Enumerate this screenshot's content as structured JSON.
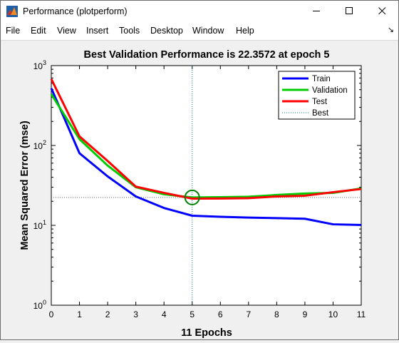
{
  "window": {
    "title": "Performance (plotperform)"
  },
  "menu": [
    "File",
    "Edit",
    "View",
    "Insert",
    "Tools",
    "Desktop",
    "Window",
    "Help"
  ],
  "colors": {
    "train": "#0000ff",
    "validation": "#00cc00",
    "test": "#ff0000",
    "best_marker": "#008000",
    "best_line": "#008080"
  },
  "chart_data": {
    "type": "line",
    "title": "Best Validation Performance is 22.3572 at epoch 5",
    "xlabel": "11 Epochs",
    "ylabel": "Mean Squared Error  (mse)",
    "xlim": [
      0,
      11
    ],
    "ylim": [
      1,
      1000
    ],
    "yscale": "log",
    "x_ticks": [
      "0",
      "1",
      "2",
      "3",
      "4",
      "5",
      "6",
      "7",
      "8",
      "9",
      "10",
      "11"
    ],
    "y_ticks": [
      {
        "base": "10",
        "exp": "0"
      },
      {
        "base": "10",
        "exp": "1"
      },
      {
        "base": "10",
        "exp": "2"
      },
      {
        "base": "10",
        "exp": "3"
      }
    ],
    "legend_position": "top-right",
    "x": [
      0,
      1,
      2,
      3,
      4,
      5,
      6,
      7,
      8,
      9,
      10,
      11
    ],
    "series": [
      {
        "name": "Train",
        "values": [
          520,
          80,
          41,
          23,
          16.5,
          13.2,
          12.8,
          12.5,
          12.3,
          12.1,
          10.3,
          10.1
        ]
      },
      {
        "name": "Validation",
        "values": [
          440,
          120,
          56,
          30,
          24.5,
          22.3572,
          22.5,
          22.8,
          24,
          25,
          25.5,
          29
        ]
      },
      {
        "name": "Test",
        "values": [
          680,
          130,
          64,
          30.5,
          25.5,
          21.6,
          21.7,
          21.9,
          23,
          23.5,
          26,
          28.5
        ]
      }
    ],
    "best": {
      "name": "Best",
      "epoch": 5,
      "value": 22.3572
    }
  }
}
